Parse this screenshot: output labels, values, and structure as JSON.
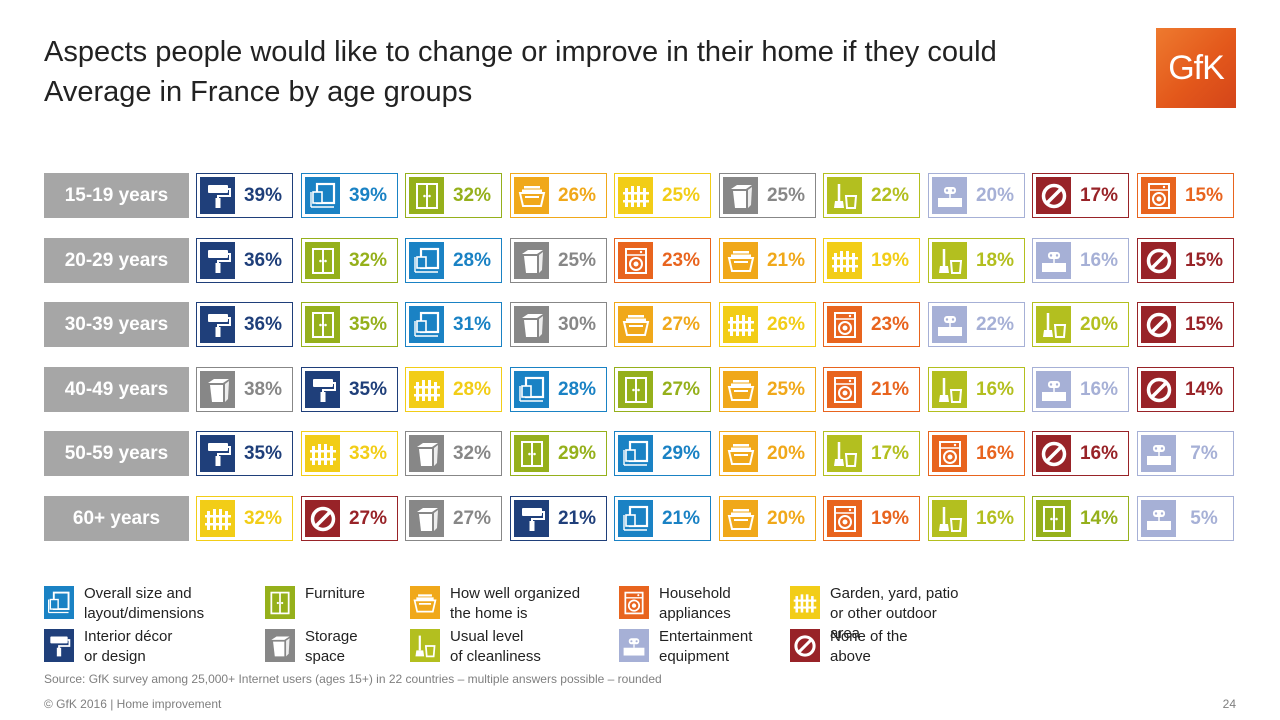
{
  "title": {
    "line1": "Aspects people would like to change or improve in their home if they could",
    "line2": "Average in France by age groups"
  },
  "logo": {
    "text": "GfK"
  },
  "categories": {
    "size": {
      "label_lines": [
        "Overall size and",
        "layout/dimensions"
      ],
      "color": "#1a82c4",
      "icon": "layout-icon"
    },
    "decor": {
      "label_lines": [
        "Interior décor",
        "or design"
      ],
      "color": "#1f3f7a",
      "icon": "paint-roller-icon"
    },
    "furniture": {
      "label_lines": [
        "Furniture"
      ],
      "color": "#95b01b",
      "icon": "wardrobe-icon"
    },
    "storage": {
      "label_lines": [
        "Storage",
        "space"
      ],
      "color": "#878787",
      "icon": "storage-box-icon"
    },
    "organized": {
      "label_lines": [
        "How well organized",
        "the home is"
      ],
      "color": "#f0a81a",
      "icon": "tray-icon"
    },
    "cleanliness": {
      "label_lines": [
        "Usual level",
        "of cleanliness"
      ],
      "color": "#b3bf1f",
      "icon": "broom-icon"
    },
    "appliances": {
      "label_lines": [
        "Household",
        "appliances"
      ],
      "color": "#e8641e",
      "icon": "washing-machine-icon"
    },
    "entertainment": {
      "label_lines": [
        "Entertainment",
        "equipment"
      ],
      "color": "#a6b0d6",
      "icon": "gamepad-icon"
    },
    "garden": {
      "label_lines": [
        "Garden, yard, patio",
        "or other outdoor area"
      ],
      "color": "#f2cd17",
      "icon": "fence-icon"
    },
    "none": {
      "label_lines": [
        "None of the",
        "above"
      ],
      "color": "#982328",
      "icon": "no-symbol-icon"
    }
  },
  "legend_order": [
    [
      "size",
      "decor"
    ],
    [
      "furniture",
      "storage"
    ],
    [
      "organized",
      "cleanliness"
    ],
    [
      "appliances",
      "entertainment"
    ],
    [
      "garden",
      "none"
    ]
  ],
  "chart_data": {
    "type": "table",
    "unit": "%",
    "rows": [
      {
        "age": "15-19 years",
        "cells": [
          {
            "cat": "decor",
            "value": 39
          },
          {
            "cat": "size",
            "value": 39
          },
          {
            "cat": "furniture",
            "value": 32
          },
          {
            "cat": "organized",
            "value": 26
          },
          {
            "cat": "garden",
            "value": 25
          },
          {
            "cat": "storage",
            "value": 25
          },
          {
            "cat": "cleanliness",
            "value": 22
          },
          {
            "cat": "entertainment",
            "value": 20
          },
          {
            "cat": "none",
            "value": 17
          },
          {
            "cat": "appliances",
            "value": 15
          }
        ]
      },
      {
        "age": "20-29 years",
        "cells": [
          {
            "cat": "decor",
            "value": 36
          },
          {
            "cat": "furniture",
            "value": 32
          },
          {
            "cat": "size",
            "value": 28
          },
          {
            "cat": "storage",
            "value": 25
          },
          {
            "cat": "appliances",
            "value": 23
          },
          {
            "cat": "organized",
            "value": 21
          },
          {
            "cat": "garden",
            "value": 19
          },
          {
            "cat": "cleanliness",
            "value": 18
          },
          {
            "cat": "entertainment",
            "value": 16
          },
          {
            "cat": "none",
            "value": 15
          }
        ]
      },
      {
        "age": "30-39 years",
        "cells": [
          {
            "cat": "decor",
            "value": 36
          },
          {
            "cat": "furniture",
            "value": 35
          },
          {
            "cat": "size",
            "value": 31
          },
          {
            "cat": "storage",
            "value": 30
          },
          {
            "cat": "organized",
            "value": 27
          },
          {
            "cat": "garden",
            "value": 26
          },
          {
            "cat": "appliances",
            "value": 23
          },
          {
            "cat": "entertainment",
            "value": 22
          },
          {
            "cat": "cleanliness",
            "value": 20
          },
          {
            "cat": "none",
            "value": 15
          }
        ]
      },
      {
        "age": "40-49 years",
        "cells": [
          {
            "cat": "storage",
            "value": 38
          },
          {
            "cat": "decor",
            "value": 35
          },
          {
            "cat": "garden",
            "value": 28
          },
          {
            "cat": "size",
            "value": 28
          },
          {
            "cat": "furniture",
            "value": 27
          },
          {
            "cat": "organized",
            "value": 25
          },
          {
            "cat": "appliances",
            "value": 21
          },
          {
            "cat": "cleanliness",
            "value": 16
          },
          {
            "cat": "entertainment",
            "value": 16
          },
          {
            "cat": "none",
            "value": 14
          }
        ]
      },
      {
        "age": "50-59 years",
        "cells": [
          {
            "cat": "decor",
            "value": 35
          },
          {
            "cat": "garden",
            "value": 33
          },
          {
            "cat": "storage",
            "value": 32
          },
          {
            "cat": "furniture",
            "value": 29
          },
          {
            "cat": "size",
            "value": 29
          },
          {
            "cat": "organized",
            "value": 20
          },
          {
            "cat": "cleanliness",
            "value": 17
          },
          {
            "cat": "appliances",
            "value": 16
          },
          {
            "cat": "none",
            "value": 16
          },
          {
            "cat": "entertainment",
            "value": 7
          }
        ]
      },
      {
        "age": "60+ years",
        "cells": [
          {
            "cat": "garden",
            "value": 32
          },
          {
            "cat": "none",
            "value": 27
          },
          {
            "cat": "storage",
            "value": 27
          },
          {
            "cat": "decor",
            "value": 21
          },
          {
            "cat": "size",
            "value": 21
          },
          {
            "cat": "organized",
            "value": 20
          },
          {
            "cat": "appliances",
            "value": 19
          },
          {
            "cat": "cleanliness",
            "value": 16
          },
          {
            "cat": "furniture",
            "value": 14
          },
          {
            "cat": "entertainment",
            "value": 5
          }
        ]
      }
    ]
  },
  "source": "Source: GfK survey among 25,000+ Internet users (ages 15+) in 22 countries – multiple answers possible – rounded",
  "footer": "© GfK 2016 | Home improvement",
  "page_number": "24"
}
